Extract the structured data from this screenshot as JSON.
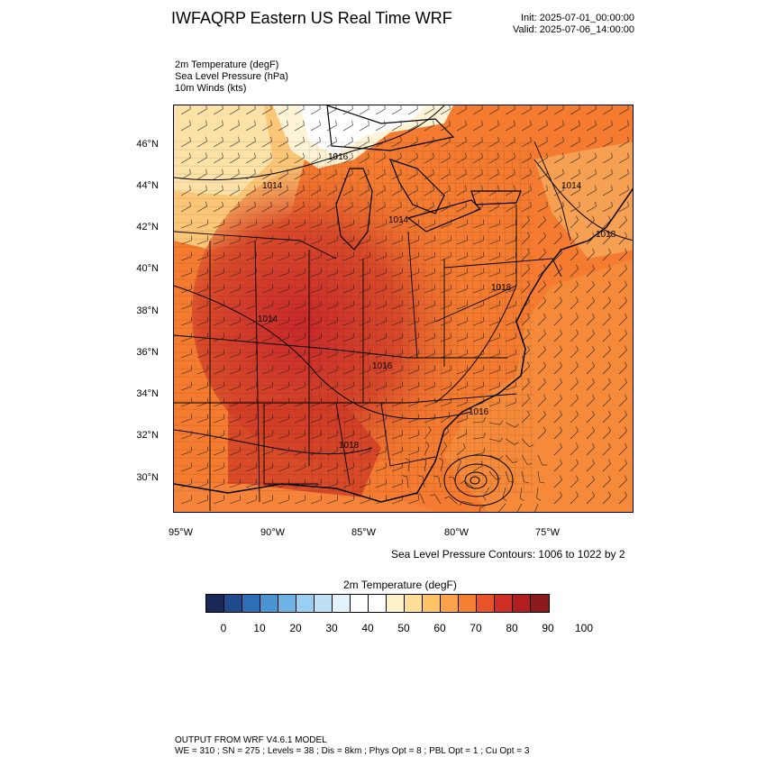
{
  "header": {
    "title": "IWFAQRP Eastern US Real Time WRF",
    "init": "Init: 2025-07-01_00:00:00",
    "valid": "Valid: 2025-07-06_14:00:00"
  },
  "fields": {
    "line1": "2m Temperature   (degF)",
    "line2": "Sea Level Pressure   (hPa)",
    "line3": "10m Winds   (kts)"
  },
  "map": {
    "lat_labels": [
      "46°N",
      "44°N",
      "42°N",
      "40°N",
      "38°N",
      "36°N",
      "34°N",
      "32°N",
      "30°N"
    ],
    "lon_labels": [
      "95°W",
      "90°W",
      "85°W",
      "80°W",
      "75°W"
    ],
    "contour_labels": [
      "1016",
      "1014",
      "1014",
      "1014",
      "1018",
      "1018",
      "1014",
      "1016",
      "1016",
      "1018"
    ],
    "contour_note": "Sea Level Pressure Contours: 1006 to 1022 by 2",
    "low_center": "hurricane-like low off Carolinas"
  },
  "colorbar": {
    "title": "2m Temperature  (degF)",
    "colors": [
      "#1a2858",
      "#1f4a8c",
      "#2e6fb8",
      "#4a94d4",
      "#6fb3e6",
      "#99cff2",
      "#bde0f5",
      "#e2f2fb",
      "#ffffff",
      "#ffffff",
      "#fff1c8",
      "#fedf99",
      "#fec467",
      "#fca24b",
      "#f57f33",
      "#e85427",
      "#cf2e24",
      "#b01e22",
      "#8b1a1a"
    ],
    "ticks": [
      "0",
      "10",
      "20",
      "30",
      "40",
      "50",
      "60",
      "70",
      "80",
      "90",
      "100"
    ]
  },
  "footer": {
    "line1": "OUTPUT FROM WRF V4.6.1 MODEL",
    "line2": "WE = 310 ; SN = 275 ; Levels = 38 ; Dis = 8km ; Phys Opt = 8 ; PBL Opt = 1 ; Cu Opt = 3"
  }
}
